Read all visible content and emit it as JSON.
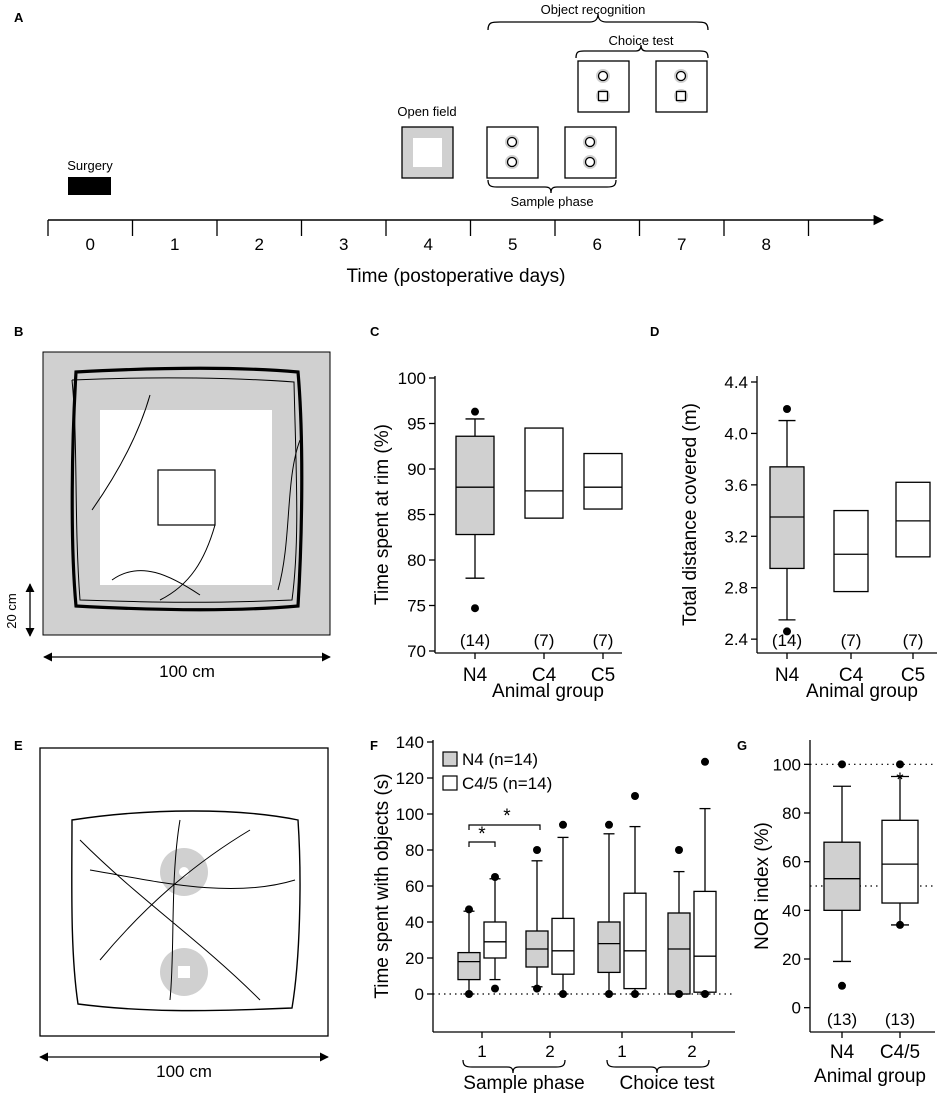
{
  "panels": {
    "A": "A",
    "B": "B",
    "C": "C",
    "D": "D",
    "E": "E",
    "F": "F",
    "G": "G"
  },
  "timeline": {
    "days": [
      "0",
      "1",
      "2",
      "3",
      "4",
      "5",
      "6",
      "7",
      "8"
    ],
    "xlabel": "Time (postoperative days)",
    "events": {
      "surgery": "Surgery",
      "open_field": "Open field",
      "object_recognition": "Object recognition",
      "choice_test": "Choice test",
      "sample_phase": "Sample phase"
    }
  },
  "arena_b": {
    "scale_vertical": "20 cm",
    "scale_horizontal": "100 cm"
  },
  "arena_e": {
    "scale_horizontal": "100 cm"
  },
  "chart_data": [
    {
      "panel": "C",
      "type": "boxplot",
      "ylabel": "Time spent at rim (%)",
      "xlabel": "Animal group",
      "ylim": [
        70,
        100
      ],
      "yticks": [
        "70",
        "75",
        "80",
        "85",
        "90",
        "95",
        "100"
      ],
      "categories": [
        "N4",
        "C4",
        "C5"
      ],
      "n_labels": [
        "(14)",
        "(7)",
        "(7)"
      ],
      "boxes": [
        {
          "group": "N4",
          "fill": "#d0d0d0",
          "q1": 82.8,
          "median": 88,
          "q3": 93.6,
          "whisker_low": 78,
          "whisker_high": 95.5,
          "outliers": [
            74.7,
            96.3
          ]
        },
        {
          "group": "C4",
          "fill": "#ffffff",
          "q1": 84.6,
          "median": 87.6,
          "q3": 94.5
        },
        {
          "group": "C5",
          "fill": "#ffffff",
          "q1": 85.6,
          "median": 88,
          "q3": 91.7
        }
      ]
    },
    {
      "panel": "D",
      "type": "boxplot",
      "ylabel": "Total distance covered (m)",
      "xlabel": "Animal group",
      "ylim": [
        2.3,
        4.4
      ],
      "yticks": [
        "2.4",
        "2.8",
        "3.2",
        "3.6",
        "4.0",
        "4.4"
      ],
      "categories": [
        "N4",
        "C4",
        "C5"
      ],
      "n_labels": [
        "(14)",
        "(7)",
        "(7)"
      ],
      "boxes": [
        {
          "group": "N4",
          "fill": "#d0d0d0",
          "q1": 2.95,
          "median": 3.35,
          "q3": 3.74,
          "whisker_low": 2.55,
          "whisker_high": 4.1,
          "outliers": [
            2.46,
            4.19
          ]
        },
        {
          "group": "C4",
          "fill": "#ffffff",
          "q1": 2.77,
          "median": 3.06,
          "q3": 3.4
        },
        {
          "group": "C5",
          "fill": "#ffffff",
          "q1": 3.04,
          "median": 3.32,
          "q3": 3.62
        }
      ]
    },
    {
      "panel": "F",
      "type": "boxplot",
      "ylabel": "Time spent with objects (s)",
      "ylim": [
        -20,
        140
      ],
      "yticks": [
        "0",
        "20",
        "40",
        "60",
        "80",
        "100",
        "120",
        "140"
      ],
      "categories": [
        "1",
        "2",
        "1",
        "2"
      ],
      "group_labels": [
        "Sample phase",
        "Choice test"
      ],
      "legend": [
        {
          "name": "N4 (n=14)",
          "fill": "#d0d0d0"
        },
        {
          "name": "C4/5 (n=14)",
          "fill": "#ffffff"
        }
      ],
      "significance": [
        "*",
        "*"
      ],
      "boxes": [
        {
          "cat": 0,
          "series": "N4",
          "fill": "#d0d0d0",
          "q1": 8,
          "median": 18,
          "q3": 23,
          "whisker_low": 0,
          "whisker_high": 46,
          "outliers": [
            0,
            47
          ]
        },
        {
          "cat": 0,
          "series": "C4/5",
          "fill": "#ffffff",
          "q1": 20,
          "median": 29,
          "q3": 40,
          "whisker_low": 8,
          "whisker_high": 64,
          "outliers": [
            3,
            65
          ]
        },
        {
          "cat": 1,
          "series": "N4",
          "fill": "#d0d0d0",
          "q1": 15,
          "median": 25,
          "q3": 35,
          "whisker_low": 4,
          "whisker_high": 74,
          "outliers": [
            3,
            80
          ]
        },
        {
          "cat": 1,
          "series": "C4/5",
          "fill": "#ffffff",
          "q1": 11,
          "median": 24,
          "q3": 42,
          "whisker_low": 0,
          "whisker_high": 87,
          "outliers": [
            0,
            94
          ]
        },
        {
          "cat": 2,
          "series": "N4",
          "fill": "#d0d0d0",
          "q1": 12,
          "median": 28,
          "q3": 40,
          "whisker_low": 0,
          "whisker_high": 89,
          "outliers": [
            0,
            94
          ]
        },
        {
          "cat": 2,
          "series": "C4/5",
          "fill": "#ffffff",
          "q1": 3,
          "median": 24,
          "q3": 56,
          "whisker_low": 0,
          "whisker_high": 93,
          "outliers": [
            0,
            110
          ]
        },
        {
          "cat": 3,
          "series": "N4",
          "fill": "#d0d0d0",
          "q1": 0,
          "median": 25,
          "q3": 45,
          "whisker_low": 0,
          "whisker_high": 68,
          "outliers": [
            0,
            80
          ]
        },
        {
          "cat": 3,
          "series": "C4/5",
          "fill": "#ffffff",
          "q1": 1,
          "median": 21,
          "q3": 57,
          "whisker_low": 0,
          "whisker_high": 103,
          "outliers": [
            0,
            129
          ]
        }
      ]
    },
    {
      "panel": "G",
      "type": "boxplot",
      "ylabel": "NOR index (%)",
      "xlabel": "Animal group",
      "ylim": [
        -10,
        110
      ],
      "yticks": [
        "0",
        "20",
        "40",
        "60",
        "80",
        "100"
      ],
      "categories": [
        "N4",
        "C4/5"
      ],
      "n_labels": [
        "(13)",
        "(13)"
      ],
      "significance": [
        "*"
      ],
      "boxes": [
        {
          "group": "N4",
          "fill": "#d0d0d0",
          "q1": 40,
          "median": 53,
          "q3": 68,
          "whisker_low": 19,
          "whisker_high": 91,
          "outliers": [
            9,
            100
          ]
        },
        {
          "group": "C4/5",
          "fill": "#ffffff",
          "q1": 43,
          "median": 59,
          "q3": 77,
          "whisker_low": 34,
          "whisker_high": 95,
          "outliers": [
            34,
            100
          ]
        }
      ]
    }
  ]
}
